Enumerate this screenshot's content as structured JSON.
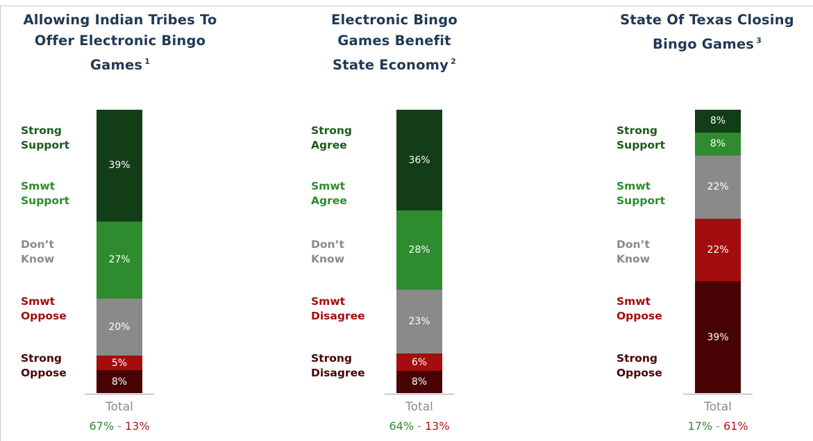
{
  "colors": {
    "title": "#1f3a56",
    "strong_positive": "#123d17",
    "smwt_positive": "#2e8b2e",
    "dont_know": "#8a8a8a",
    "smwt_negative": "#a40d0d",
    "strong_negative": "#470303",
    "net_positive": "#2e8b2e",
    "net_negative": "#b01515"
  },
  "chart_data": [
    {
      "type": "bar",
      "stacked": true,
      "title": "Allowing Indian Tribes To Offer Electronic Bingo Games",
      "title_note": "1",
      "category_labels": [
        "Strong\nSupport",
        "Smwt\nSupport",
        "Don’t\nKnow",
        "Smwt\nOppose",
        "Strong\nOppose"
      ],
      "segments_top_to_bottom": [
        {
          "key": "strong_positive",
          "value": 39,
          "label": "39%"
        },
        {
          "key": "smwt_positive",
          "value": 27,
          "label": "27%"
        },
        {
          "key": "dont_know",
          "value": 20,
          "label": "20%"
        },
        {
          "key": "smwt_negative",
          "value": 5,
          "label": "5%"
        },
        {
          "key": "strong_negative",
          "value": 8,
          "label": "8%"
        }
      ],
      "xlabel": "Total",
      "net_positive": "67%",
      "net_separator": "-",
      "net_negative": "13%"
    },
    {
      "type": "bar",
      "stacked": true,
      "title": "Electronic Bingo Games Benefit State Economy",
      "title_note": "2",
      "category_labels": [
        "Strong\nAgree",
        "Smwt\nAgree",
        "Don’t\nKnow",
        "Smwt\nDisagree",
        "Strong\nDisagree"
      ],
      "segments_top_to_bottom": [
        {
          "key": "strong_positive",
          "value": 36,
          "label": "36%"
        },
        {
          "key": "smwt_positive",
          "value": 28,
          "label": "28%"
        },
        {
          "key": "dont_know",
          "value": 23,
          "label": "23%"
        },
        {
          "key": "smwt_negative",
          "value": 6,
          "label": "6%"
        },
        {
          "key": "strong_negative",
          "value": 8,
          "label": "8%"
        }
      ],
      "xlabel": "Total",
      "net_positive": "64%",
      "net_separator": "-",
      "net_negative": "13%"
    },
    {
      "type": "bar",
      "stacked": true,
      "title": "State Of Texas Closing Bingo Games",
      "title_note": "3",
      "category_labels": [
        "Strong\nSupport",
        "Smwt\nSupport",
        "Don’t\nKnow",
        "Smwt\nOppose",
        "Strong\nOppose"
      ],
      "segments_top_to_bottom": [
        {
          "key": "strong_positive",
          "value": 8,
          "label": "8%"
        },
        {
          "key": "smwt_positive",
          "value": 8,
          "label": "8%"
        },
        {
          "key": "dont_know",
          "value": 22,
          "label": "22%"
        },
        {
          "key": "smwt_negative",
          "value": 22,
          "label": "22%"
        },
        {
          "key": "strong_negative",
          "value": 39,
          "label": "39%"
        }
      ],
      "xlabel": "Total",
      "net_positive": "17%",
      "net_separator": "-",
      "net_negative": "61%"
    }
  ]
}
